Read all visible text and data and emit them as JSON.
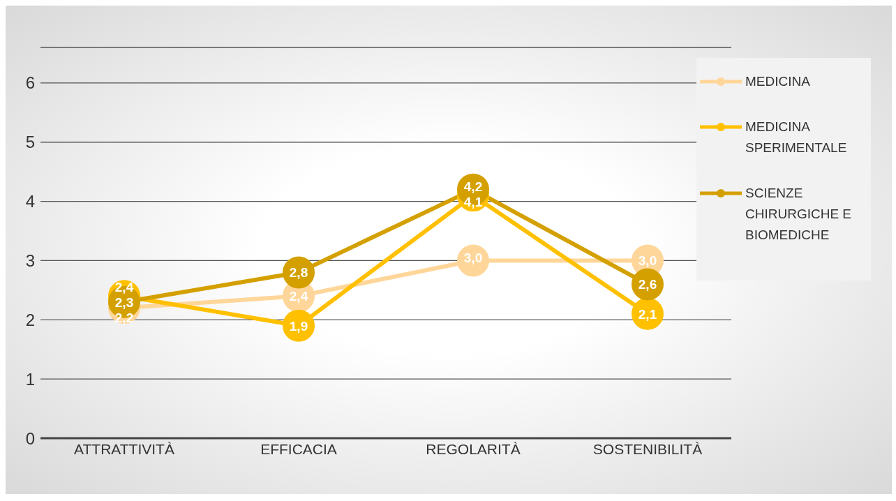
{
  "chart_data": {
    "type": "line",
    "categories": [
      "ATTRATTIVITÀ",
      "EFFICACIA",
      "REGOLARITÀ",
      "SOSTENIBILITÀ"
    ],
    "series": [
      {
        "name": "MEDICINA",
        "color": "#ffd699",
        "values": [
          2.2,
          2.4,
          3.0,
          3.0
        ],
        "value_labels": [
          "2,2",
          "2,4",
          "3,0",
          "3,0"
        ]
      },
      {
        "name": "MEDICINA SPERIMENTALE",
        "color": "#ffc000",
        "values": [
          2.4,
          1.9,
          4.1,
          2.1
        ],
        "value_labels": [
          "2,4",
          "1,9",
          "4,1",
          "2,1"
        ]
      },
      {
        "name": "SCIENZE CHIRURGICHE E BIOMEDICHE",
        "color": "#d4a000",
        "values": [
          2.3,
          2.8,
          4.2,
          2.6
        ],
        "value_labels": [
          "2,3",
          "2,8",
          "4,2",
          "2,6"
        ]
      }
    ],
    "ylim": [
      0,
      6.6
    ],
    "yticks": [
      0,
      1,
      2,
      3,
      4,
      5,
      6
    ],
    "grid": "y",
    "legend": "right",
    "marker": "circle",
    "line_style": "solid"
  }
}
